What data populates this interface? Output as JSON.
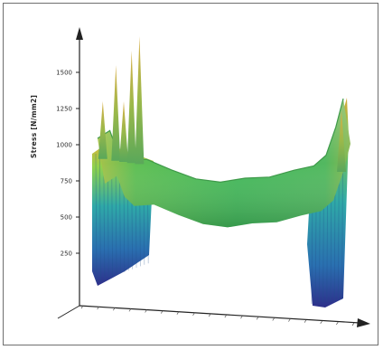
{
  "chart_data": {
    "type": "surface",
    "ylabel": "Stress [N/mm2]",
    "xlabel": "",
    "yticks": [
      250,
      500,
      750,
      1000,
      1250,
      1500
    ],
    "ylim": [
      0,
      1750
    ],
    "grid": false,
    "legend": "none",
    "colormap": [
      "#2d2f8a",
      "#2a6fb0",
      "#2fa9a8",
      "#4cc36a",
      "#8fd24c",
      "#e0b23a",
      "#d07a2a"
    ],
    "profile": {
      "position": [
        0.0,
        0.05,
        0.08,
        0.12,
        0.2,
        0.3,
        0.4,
        0.5,
        0.6,
        0.7,
        0.8,
        0.88,
        0.93,
        0.97,
        1.0
      ],
      "stress": [
        1050,
        1080,
        1010,
        980,
        990,
        960,
        935,
        930,
        950,
        960,
        990,
        1010,
        1050,
        1150,
        1250
      ]
    },
    "peaks": [
      {
        "position": 0.02,
        "stress": 1300
      },
      {
        "position": 0.07,
        "stress": 1550
      },
      {
        "position": 0.1,
        "stress": 1300
      },
      {
        "position": 0.13,
        "stress": 1650
      },
      {
        "position": 0.16,
        "stress": 1750
      },
      {
        "position": 0.99,
        "stress": 1300
      }
    ]
  }
}
